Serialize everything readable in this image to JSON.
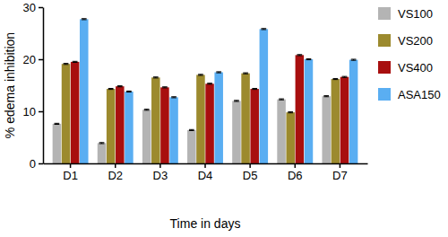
{
  "chart_data": {
    "type": "bar",
    "x_label": "Time in days",
    "y_label": "% edema inhibition",
    "categories": [
      "D1",
      "D2",
      "D3",
      "D4",
      "D5",
      "D6",
      "D7"
    ],
    "series": [
      {
        "name": "VS100",
        "color": "#b4b4b4",
        "values": [
          7.6,
          3.9,
          10.3,
          6.4,
          12.0,
          12.3,
          12.9
        ],
        "errors": [
          0.1,
          0.1,
          0.1,
          0.1,
          0.1,
          0.1,
          0.1
        ]
      },
      {
        "name": "VS200",
        "color": "#9c8a2e",
        "values": [
          19.1,
          14.3,
          16.5,
          17.0,
          17.3,
          9.8,
          16.2
        ],
        "errors": [
          0.1,
          0.1,
          0.1,
          0.1,
          0.1,
          0.1,
          0.1
        ]
      },
      {
        "name": "VS400",
        "color": "#a80f0f",
        "values": [
          19.5,
          14.8,
          14.6,
          15.3,
          14.3,
          20.8,
          16.6
        ],
        "errors": [
          0.1,
          0.1,
          0.1,
          0.1,
          0.1,
          0.1,
          0.1
        ]
      },
      {
        "name": "ASA150",
        "color": "#5aaef2",
        "values": [
          27.7,
          13.8,
          12.7,
          17.5,
          25.8,
          20.0,
          19.9
        ],
        "errors": [
          0.1,
          0.1,
          0.1,
          0.1,
          0.1,
          0.1,
          0.1
        ]
      }
    ],
    "ylim": [
      0,
      30
    ],
    "yticks": [
      0,
      10,
      20,
      30
    ],
    "grid": false,
    "legend": "right"
  }
}
